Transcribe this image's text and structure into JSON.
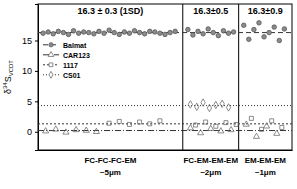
{
  "chart_data": {
    "type": "scatter",
    "y_label": {
      "prefix": "δ",
      "superscript": "34",
      "main": "S",
      "subscript": "VCDT"
    },
    "xlim": [
      0,
      100
    ],
    "ylim": [
      -3,
      21
    ],
    "yticks": [
      0,
      5,
      10,
      15
    ],
    "grid": false,
    "tick_labels": "y",
    "legend": "center left",
    "sections": [
      {
        "label": "FC-FC-FC-EM",
        "size": "~5μm",
        "annotation": "16.3 ± 0.3 (1SD)",
        "x_start": 0,
        "x_end": 57
      },
      {
        "label": "FC-EM-EM-EM",
        "size": "~2μm",
        "annotation": "16.3±0.5",
        "x_start": 57,
        "x_end": 79
      },
      {
        "label": "EM-EM-EM",
        "size": "~1μm",
        "annotation": "16.3±0.9",
        "x_start": 79,
        "x_end": 100
      }
    ],
    "series": [
      {
        "name": "Balmat",
        "color": "#8c8c8c",
        "marker": "circle",
        "line_style": "dashed",
        "reference": 16.3,
        "x": [
          2,
          4,
          6,
          8,
          10,
          12,
          14,
          16,
          18,
          20,
          22,
          24,
          26,
          28,
          30,
          32,
          34,
          36,
          38,
          40,
          42,
          44,
          46,
          48,
          50,
          52,
          54,
          59,
          61,
          63,
          65,
          67,
          69,
          71,
          73,
          75,
          77,
          81,
          83,
          85,
          87,
          89,
          91,
          93,
          95,
          97
        ],
        "values": [
          16.2,
          16.4,
          16.1,
          16.5,
          16.3,
          16.0,
          16.6,
          16.2,
          16.4,
          16.3,
          16.1,
          16.5,
          16.2,
          16.7,
          16.3,
          16.0,
          16.4,
          16.2,
          16.6,
          16.3,
          16.1,
          16.5,
          16.4,
          16.2,
          16.0,
          16.3,
          16.5,
          16.8,
          15.9,
          16.5,
          16.1,
          16.9,
          16.3,
          15.8,
          16.6,
          16.2,
          16.4,
          17.5,
          15.2,
          16.8,
          17.9,
          15.6,
          16.3,
          17.2,
          15.0,
          16.9
        ]
      },
      {
        "name": "CAR123",
        "color": "#6e6e6e",
        "marker": "triangle",
        "line_style": "dashdot",
        "reference": 0.2,
        "x": [
          3,
          7,
          11,
          15,
          19,
          23,
          60,
          64,
          68,
          72,
          76,
          82,
          86,
          90,
          94
        ],
        "values": [
          0.1,
          0.4,
          -0.1,
          0.3,
          0.2,
          0.0,
          0.6,
          -0.2,
          0.5,
          0.1,
          0.3,
          1.2,
          -0.8,
          0.9,
          -0.3
        ]
      },
      {
        "name": "1117",
        "color": "#6e6e6e",
        "marker": "square",
        "line_style": "shortdash",
        "reference": 1.3,
        "x": [
          28,
          32,
          36,
          40,
          44,
          48,
          62,
          66,
          70,
          74,
          78,
          84,
          88,
          92,
          96
        ],
        "values": [
          1.4,
          1.7,
          1.2,
          1.6,
          1.3,
          1.8,
          1.1,
          1.6,
          0.9,
          1.5,
          1.2,
          2.2,
          0.4,
          1.8,
          0.7
        ]
      },
      {
        "name": "CS01",
        "color": "#6e6e6e",
        "marker": "diamond",
        "line_style": "dotted",
        "reference": 4.3,
        "x": [
          60,
          62.5,
          65,
          67.5,
          70,
          72.5,
          75
        ],
        "values": [
          4.5,
          4.1,
          4.8,
          3.9,
          4.4,
          4.6,
          4.0
        ]
      }
    ]
  }
}
